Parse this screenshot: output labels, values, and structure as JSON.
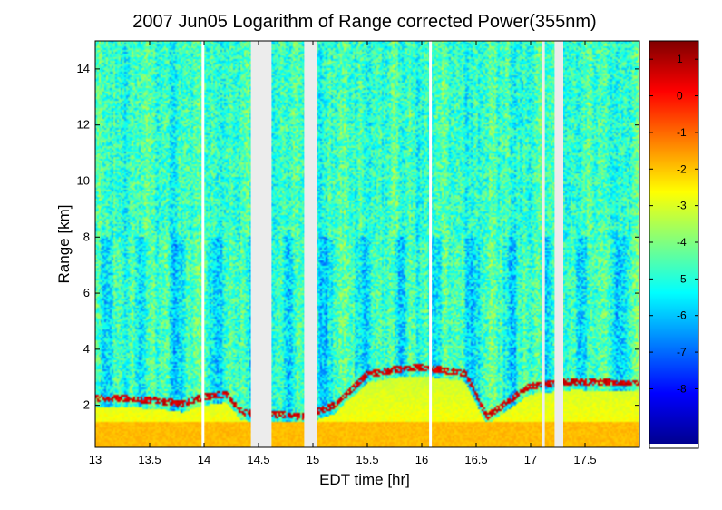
{
  "chart_data": {
    "type": "heatmap",
    "title": "2007 Jun05  Logarithm of Range corrected Power(355nm)",
    "xlabel": "EDT time [hr]",
    "ylabel": "Range [km]",
    "xlim": [
      13,
      18
    ],
    "ylim": [
      0.5,
      15
    ],
    "x_ticks": [
      "13",
      "13.5",
      "14",
      "14.5",
      "15",
      "15.5",
      "16",
      "16.5",
      "17",
      "17.5"
    ],
    "x_tick_values": [
      13,
      13.5,
      14,
      14.5,
      15,
      15.5,
      16,
      16.5,
      17,
      17.5
    ],
    "y_ticks": [
      "2",
      "4",
      "6",
      "8",
      "10",
      "12",
      "14"
    ],
    "y_tick_values": [
      2,
      4,
      6,
      8,
      10,
      12,
      14
    ],
    "colorbar": {
      "range": [
        -9.5,
        1.5
      ],
      "ticks": [
        "1",
        "0",
        "-1",
        "-2",
        "-3",
        "-4",
        "-5",
        "-6",
        "-7",
        "-8"
      ],
      "tick_values": [
        1,
        0,
        -1,
        -2,
        -3,
        -4,
        -5,
        -6,
        -7,
        -8
      ],
      "colormap": "jet"
    },
    "data_gaps_hr": [
      [
        14.43,
        14.62
      ],
      [
        14.92,
        15.04
      ],
      [
        17.1,
        17.13
      ],
      [
        17.22,
        17.3
      ]
    ],
    "white_gap_lines_hr": [
      13.99,
      16.08
    ],
    "boundary_layer_top_km": [
      {
        "x": 13.2,
        "y": 2.25
      },
      {
        "x": 13.4,
        "y": 2.2
      },
      {
        "x": 13.6,
        "y": 2.15
      },
      {
        "x": 13.8,
        "y": 2.05
      },
      {
        "x": 14.0,
        "y": 2.3
      },
      {
        "x": 14.2,
        "y": 2.4
      },
      {
        "x": 14.35,
        "y": 1.75
      },
      {
        "x": 14.9,
        "y": 1.6
      },
      {
        "x": 15.2,
        "y": 2.0
      },
      {
        "x": 15.5,
        "y": 3.1
      },
      {
        "x": 15.8,
        "y": 3.3
      },
      {
        "x": 16.0,
        "y": 3.35
      },
      {
        "x": 16.2,
        "y": 3.25
      },
      {
        "x": 16.4,
        "y": 3.15
      },
      {
        "x": 16.6,
        "y": 1.6
      },
      {
        "x": 17.0,
        "y": 2.7
      },
      {
        "x": 17.4,
        "y": 2.85
      },
      {
        "x": 17.8,
        "y": 2.8
      }
    ],
    "grid": false
  }
}
